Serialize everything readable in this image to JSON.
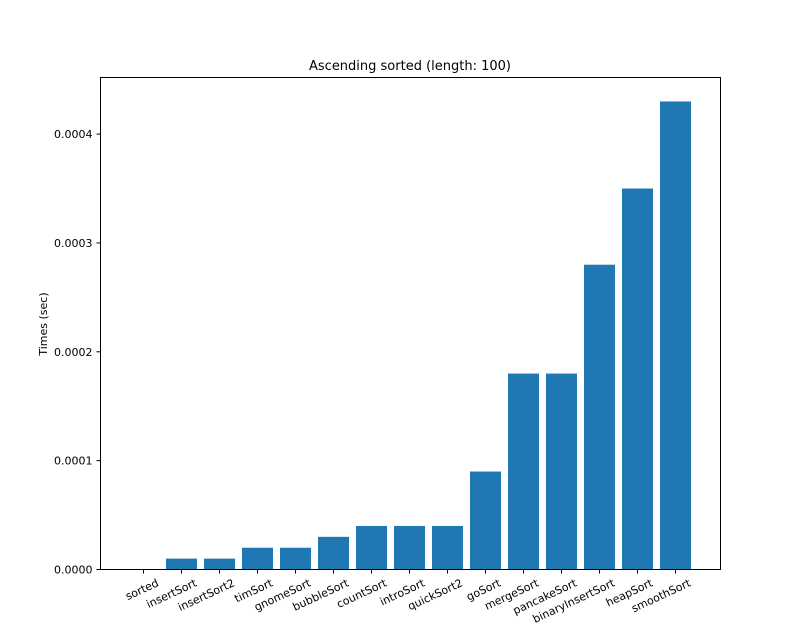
{
  "chart_data": {
    "type": "bar",
    "title": "Ascending sorted (length: 100)",
    "xlabel": "",
    "ylabel": "Times (sec)",
    "categories": [
      "sorted",
      "insertSort",
      "insertSort2",
      "timSort",
      "gnomeSort",
      "bubbleSort",
      "countSort",
      "introSort",
      "quickSort2",
      "goSort",
      "mergeSort",
      "pancakeSort",
      "binaryInsertSort",
      "heapSort",
      "smoothSort"
    ],
    "values": [
      0.0,
      1e-05,
      1e-05,
      2e-05,
      2e-05,
      3e-05,
      4e-05,
      4e-05,
      4e-05,
      9e-05,
      0.00018,
      0.00018,
      0.00028,
      0.00035,
      0.00043
    ],
    "ylim": [
      0,
      0.000452
    ],
    "yticks": [
      0.0,
      0.0001,
      0.0002,
      0.0003,
      0.0004
    ],
    "ytick_labels": [
      "0.0000",
      "0.0001",
      "0.0002",
      "0.0003",
      "0.0004"
    ],
    "grid": false,
    "colors": {
      "bar": "#1f77b4",
      "axes": "#000000",
      "background": "#ffffff"
    }
  }
}
